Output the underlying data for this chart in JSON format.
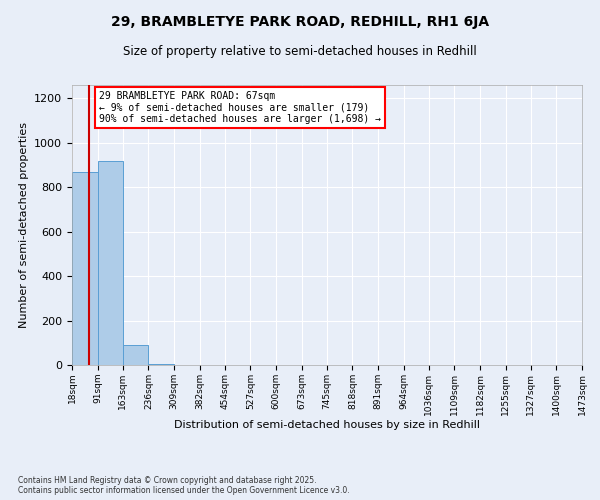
{
  "title1": "29, BRAMBLETYE PARK ROAD, REDHILL, RH1 6JA",
  "title2": "Size of property relative to semi-detached houses in Redhill",
  "xlabel": "Distribution of semi-detached houses by size in Redhill",
  "ylabel": "Number of semi-detached properties",
  "footnote1": "Contains HM Land Registry data © Crown copyright and database right 2025.",
  "footnote2": "Contains public sector information licensed under the Open Government Licence v3.0.",
  "annotation_title": "29 BRAMBLETYE PARK ROAD: 67sqm",
  "annotation_line1": "← 9% of semi-detached houses are smaller (179)",
  "annotation_line2": "90% of semi-detached houses are larger (1,698) →",
  "bin_edges": [
    18,
    91,
    163,
    236,
    309,
    382,
    454,
    527,
    600,
    673,
    745,
    818,
    891,
    964,
    1036,
    1109,
    1182,
    1255,
    1327,
    1400,
    1473
  ],
  "bin_counts": [
    870,
    920,
    90,
    5,
    2,
    1,
    0,
    1,
    0,
    0,
    1,
    0,
    0,
    1,
    0,
    1,
    0,
    0,
    0,
    1
  ],
  "bar_color": "#aecce8",
  "bar_edge_color": "#5a9fd4",
  "property_size": 67,
  "red_line_color": "#cc0000",
  "ylim": [
    0,
    1260
  ],
  "background_color": "#e8eef8",
  "grid_color": "#ffffff"
}
